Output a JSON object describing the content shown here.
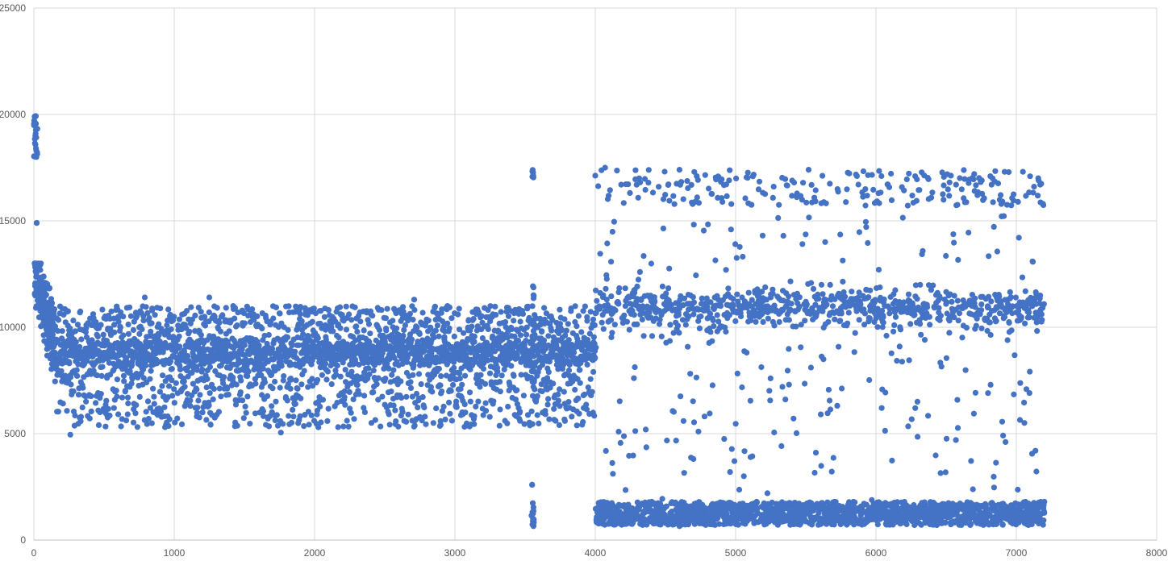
{
  "chart_data": {
    "type": "scatter",
    "title": "",
    "xlabel": "",
    "ylabel": "",
    "xlim": [
      0,
      8000
    ],
    "ylim": [
      0,
      25000
    ],
    "x_ticks": [
      0,
      1000,
      2000,
      3000,
      4000,
      5000,
      6000,
      7000,
      8000
    ],
    "y_ticks": [
      0,
      5000,
      10000,
      15000,
      20000,
      25000
    ],
    "grid": true,
    "legend": "none",
    "point_color": "#4472C4",
    "point_count_approx": 7200,
    "series": [
      {
        "segments": [
          {
            "x_range": [
              0,
              25
            ],
            "main_band": [
              18000,
              20000
            ],
            "note": "initial high outliers"
          },
          {
            "x_range": [
              25,
              150
            ],
            "main_band": [
              9000,
              12500
            ],
            "outlier_band": [
              6000,
              15000
            ]
          },
          {
            "x_range": [
              150,
              4000
            ],
            "main_band": [
              7800,
              9800
            ],
            "lower_band": [
              5000,
              7800
            ],
            "upper_band": [
              9800,
              11500
            ]
          },
          {
            "x_range": [
              3540,
              3570
            ],
            "main_band": [
              600,
              2600
            ],
            "outlier_band": [
              17000,
              17400
            ],
            "note": "isolated cluster"
          },
          {
            "x_range": [
              4000,
              7200
            ],
            "main_band": [
              700,
              1800
            ],
            "mid_band": [
              10000,
              12000
            ],
            "upper_band": [
              15500,
              17500
            ],
            "scattered_range": [
              1800,
              15500
            ]
          }
        ],
        "sample_points": [
          {
            "x": 5,
            "y": 19900
          },
          {
            "x": 10,
            "y": 19600
          },
          {
            "x": 15,
            "y": 18400
          },
          {
            "x": 18,
            "y": 18000
          },
          {
            "x": 20,
            "y": 14900
          },
          {
            "x": 12,
            "y": 12800
          },
          {
            "x": 260,
            "y": 4950
          },
          {
            "x": 1760,
            "y": 5050
          },
          {
            "x": 790,
            "y": 11400
          },
          {
            "x": 1250,
            "y": 11400
          },
          {
            "x": 2710,
            "y": 11300
          },
          {
            "x": 3555,
            "y": 17300
          },
          {
            "x": 3555,
            "y": 17100
          },
          {
            "x": 3550,
            "y": 2600
          },
          {
            "x": 3560,
            "y": 650
          },
          {
            "x": 4070,
            "y": 17500
          },
          {
            "x": 4600,
            "y": 17400
          },
          {
            "x": 5520,
            "y": 17400
          },
          {
            "x": 6700,
            "y": 17200
          },
          {
            "x": 7170,
            "y": 16700
          },
          {
            "x": 7190,
            "y": 15800
          },
          {
            "x": 4600,
            "y": 650
          },
          {
            "x": 7200,
            "y": 1800
          }
        ]
      }
    ]
  }
}
